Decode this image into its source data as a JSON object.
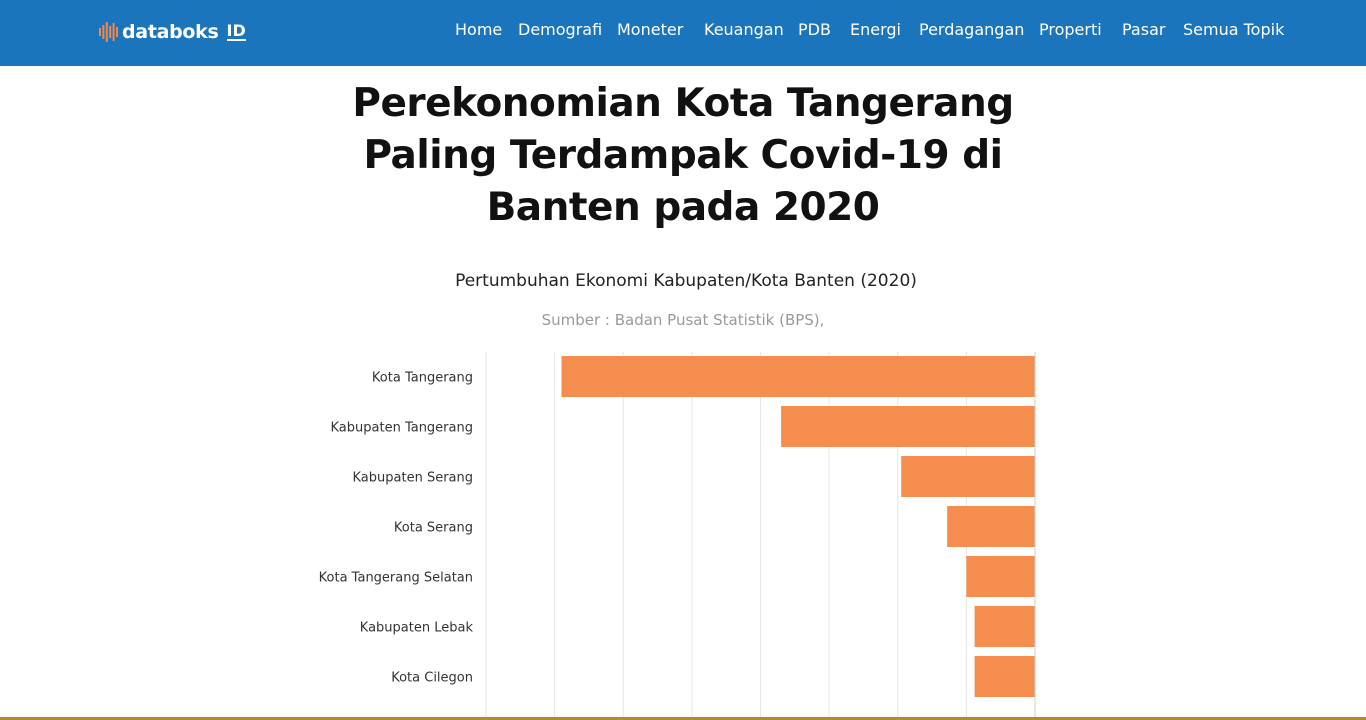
{
  "site": {
    "logo_text": "databoks",
    "logo_badge": "ID",
    "brand_color": "#1b75bc",
    "logo_mark_color": "#f4874b"
  },
  "nav": {
    "items": [
      {
        "label": "Home"
      },
      {
        "label": "Demografi"
      },
      {
        "label": "Moneter"
      },
      {
        "label": "Keuangan"
      },
      {
        "label": "PDB"
      },
      {
        "label": "Energi"
      },
      {
        "label": "Perdagangan"
      },
      {
        "label": "Properti"
      },
      {
        "label": "Pasar"
      },
      {
        "label": "Semua Topik"
      }
    ]
  },
  "article": {
    "title": "Perekonomian Kota Tangerang Paling Terdampak Covid-19 di Banten pada 2020"
  },
  "chart_data": {
    "type": "bar",
    "orientation": "horizontal",
    "title": "Pertumbuhan Ekonomi Kabupaten/Kota Banten (2020)",
    "source": "Sumber : Badan Pusat Statistik (BPS),",
    "categories": [
      "Kota Tangerang",
      "Kabupaten Tangerang",
      "Kabupaten Serang",
      "Kota Serang",
      "Kota Tangerang Selatan",
      "Kabupaten Lebak",
      "Kota Cilegon"
    ],
    "values": [
      -6.9,
      -3.7,
      -1.95,
      -1.28,
      -1.0,
      -0.88,
      -0.88
    ],
    "xlim": [
      -8,
      0
    ],
    "grid": true,
    "bar_color": "#f58d4f",
    "grid_color": "#e6e6e6"
  }
}
